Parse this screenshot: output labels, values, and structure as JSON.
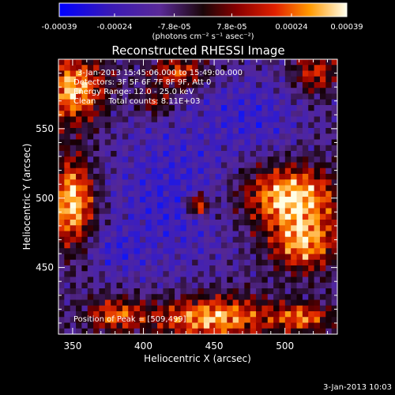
{
  "chart_data": {
    "type": "heatmap",
    "title": "Reconstructed RHESSI Image",
    "xlabel": "Heliocentric X (arcsec)",
    "ylabel": "Heliocentric Y (arcsec)",
    "xlim": [
      340,
      537
    ],
    "ylim": [
      402,
      600
    ],
    "x_ticks": [
      "350",
      "400",
      "450",
      "500"
    ],
    "x_tick_values": [
      350,
      400,
      450,
      500
    ],
    "y_ticks": [
      "450",
      "500",
      "550"
    ],
    "y_tick_values": [
      450,
      500,
      550
    ],
    "colorbar": {
      "range": [
        -0.00039,
        0.00039
      ],
      "tick_labels": [
        "-0.00039",
        "-0.00024",
        "-7.8e-05",
        "7.8e-05",
        "0.00024",
        "0.00039"
      ],
      "tick_values": [
        -0.00039,
        -0.00024,
        -7.8e-05,
        7.8e-05,
        0.00024,
        0.00039
      ],
      "unit_label": "(photons cm⁻² s⁻¹ asec⁻²)"
    },
    "annotations": {
      "time": "3-Jan-2013 15:45:06.000 to 15:49:00.000",
      "detectors": "Detectors: 3F 5F 6F 7F 8F 9F, Att 0",
      "energy": "Energy Range: 12.0 - 25.0 keV",
      "clean": "Clean     Total counts: 8.11E+03",
      "peak": "Position of Peak = [509,499]"
    },
    "peak_position": [
      509,
      499
    ],
    "grid": false,
    "timestamp": "3-Jan-2013 10:03"
  }
}
